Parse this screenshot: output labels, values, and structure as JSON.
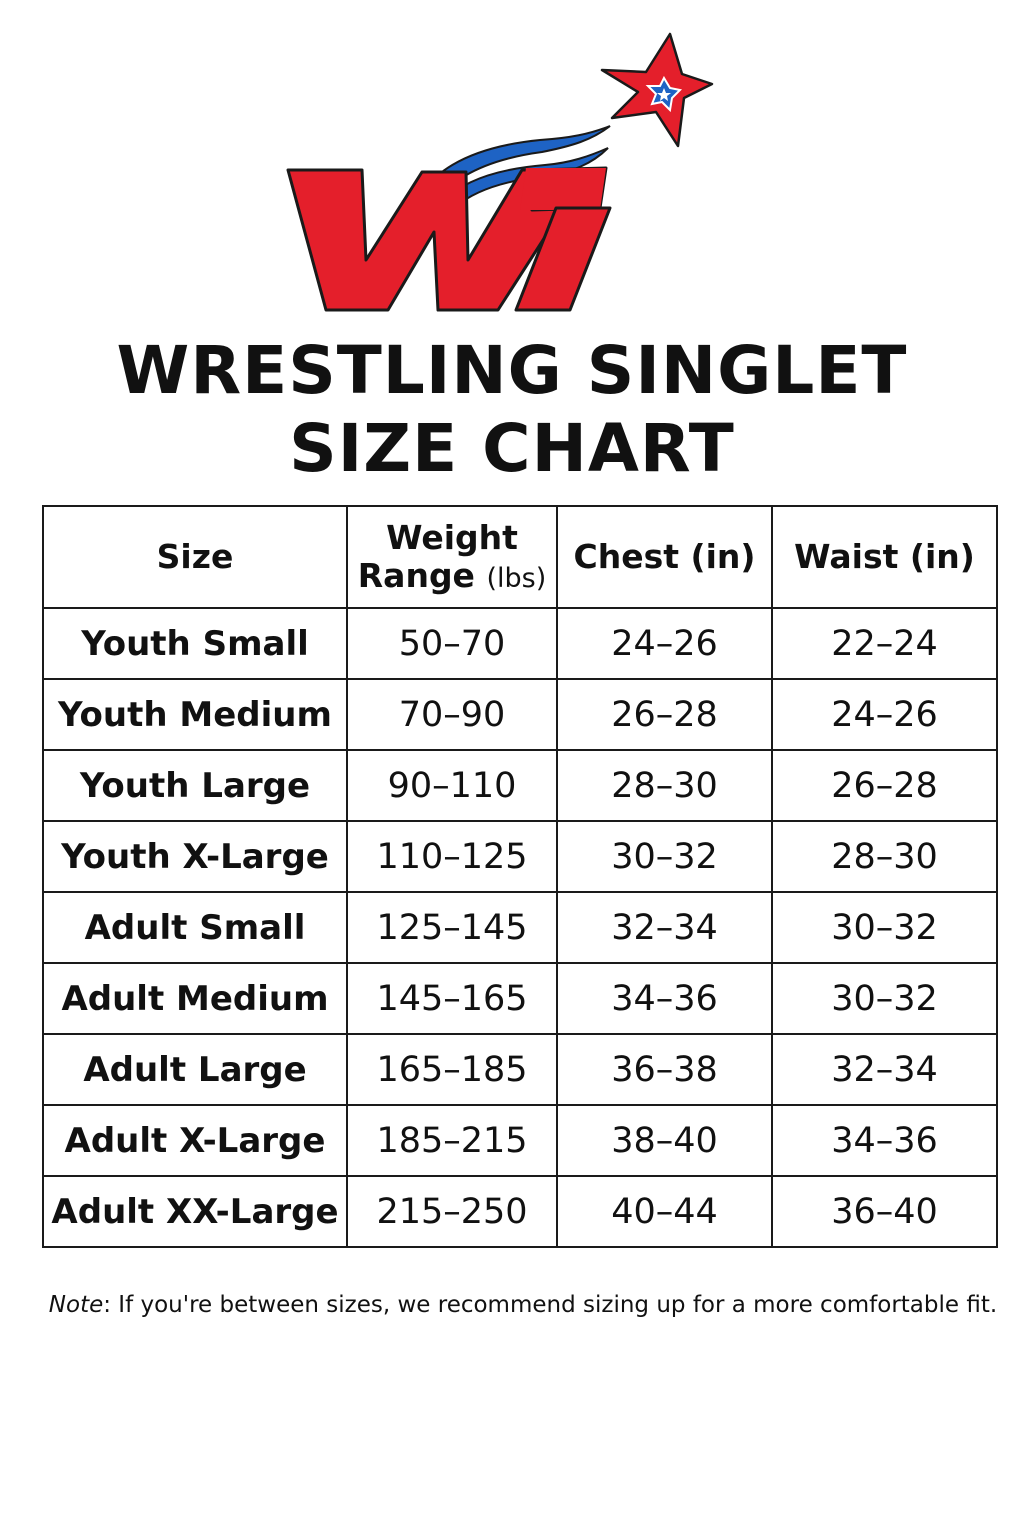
{
  "brand": {
    "logo_text": "WT",
    "colors": {
      "red": "#e41f2b",
      "blue": "#1e63c4",
      "outline": "#1a1a1a"
    }
  },
  "title": {
    "line1": "WRESTLING SINGLET",
    "line2": "SIZE CHART"
  },
  "table": {
    "headers": {
      "size": "Size",
      "weight_line1": "Weight",
      "weight_line2": "Range",
      "weight_unit": "(lbs)",
      "chest": "Chest (in)",
      "waist": "Waist (in)"
    },
    "rows": [
      {
        "size": "Youth Small",
        "weight": "50–70",
        "chest": "24–26",
        "waist": "22–24"
      },
      {
        "size": "Youth Medium",
        "weight": "70–90",
        "chest": "26–28",
        "waist": "24–26"
      },
      {
        "size": "Youth Large",
        "weight": "90–110",
        "chest": "28–30",
        "waist": "26–28"
      },
      {
        "size": "Youth X-Large",
        "weight": "110–125",
        "chest": "30–32",
        "waist": "28–30"
      },
      {
        "size": "Adult Small",
        "weight": "125–145",
        "chest": "32–34",
        "waist": "30–32"
      },
      {
        "size": "Adult Medium",
        "weight": "145–165",
        "chest": "34–36",
        "waist": "30–32"
      },
      {
        "size": "Adult Large",
        "weight": "165–185",
        "chest": "36–38",
        "waist": "32–34"
      },
      {
        "size": "Adult X-Large",
        "weight": "185–215",
        "chest": "38–40",
        "waist": "34–36"
      },
      {
        "size": "Adult XX-Large",
        "weight": "215–250",
        "chest": "40–44",
        "waist": "36–40"
      }
    ]
  },
  "note": {
    "label": "Note",
    "text": ": If you're between sizes, we recommend sizing up for a more comfortable fit."
  }
}
